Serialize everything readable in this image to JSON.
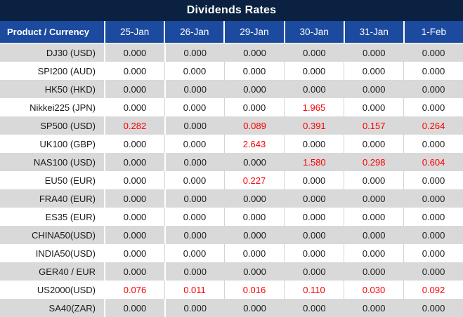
{
  "title": "Dividends Rates",
  "colors": {
    "title_bar": "#0a2142",
    "header_bar": "#1c4a9e",
    "row_gray": "#d9d9d9",
    "row_white": "#ffffff",
    "value_red": "#fe0000",
    "text_dark": "#1a1a1a"
  },
  "table": {
    "product_header": "Product / Currency",
    "date_columns": [
      "25-Jan",
      "26-Jan",
      "29-Jan",
      "30-Jan",
      "31-Jan",
      "1-Feb"
    ],
    "rows": [
      {
        "product": "DJ30 (USD)",
        "values": [
          "0.000",
          "0.000",
          "0.000",
          "0.000",
          "0.000",
          "0.000"
        ],
        "red_columns": []
      },
      {
        "product": "SPI200 (AUD)",
        "values": [
          "0.000",
          "0.000",
          "0.000",
          "0.000",
          "0.000",
          "0.000"
        ],
        "red_columns": []
      },
      {
        "product": "HK50 (HKD)",
        "values": [
          "0.000",
          "0.000",
          "0.000",
          "0.000",
          "0.000",
          "0.000"
        ],
        "red_columns": []
      },
      {
        "product": "Nikkei225 (JPN)",
        "values": [
          "0.000",
          "0.000",
          "0.000",
          "1.965",
          "0.000",
          "0.000"
        ],
        "red_columns": [
          3
        ]
      },
      {
        "product": "SP500 (USD)",
        "values": [
          "0.282",
          "0.000",
          "0.089",
          "0.391",
          "0.157",
          "0.264"
        ],
        "red_columns": [
          0,
          2,
          3,
          4,
          5
        ]
      },
      {
        "product": "UK100 (GBP)",
        "values": [
          "0.000",
          "0.000",
          "2.643",
          "0.000",
          "0.000",
          "0.000"
        ],
        "red_columns": [
          2
        ]
      },
      {
        "product": "NAS100 (USD)",
        "values": [
          "0.000",
          "0.000",
          "0.000",
          "1.580",
          "0.298",
          "0.604"
        ],
        "red_columns": [
          3,
          4,
          5
        ]
      },
      {
        "product": "EU50 (EUR)",
        "values": [
          "0.000",
          "0.000",
          "0.227",
          "0.000",
          "0.000",
          "0.000"
        ],
        "red_columns": [
          2
        ]
      },
      {
        "product": "FRA40 (EUR)",
        "values": [
          "0.000",
          "0.000",
          "0.000",
          "0.000",
          "0.000",
          "0.000"
        ],
        "red_columns": []
      },
      {
        "product": "ES35 (EUR)",
        "values": [
          "0.000",
          "0.000",
          "0.000",
          "0.000",
          "0.000",
          "0.000"
        ],
        "red_columns": []
      },
      {
        "product": "CHINA50(USD)",
        "values": [
          "0.000",
          "0.000",
          "0.000",
          "0.000",
          "0.000",
          "0.000"
        ],
        "red_columns": []
      },
      {
        "product": "INDIA50(USD)",
        "values": [
          "0.000",
          "0.000",
          "0.000",
          "0.000",
          "0.000",
          "0.000"
        ],
        "red_columns": []
      },
      {
        "product": "GER40 / EUR",
        "values": [
          "0.000",
          "0.000",
          "0.000",
          "0.000",
          "0.000",
          "0.000"
        ],
        "red_columns": []
      },
      {
        "product": "US2000(USD)",
        "values": [
          "0.076",
          "0.011",
          "0.016",
          "0.110",
          "0.030",
          "0.092"
        ],
        "red_columns": [
          0,
          1,
          2,
          3,
          4,
          5
        ]
      },
      {
        "product": "SA40(ZAR)",
        "values": [
          "0.000",
          "0.000",
          "0.000",
          "0.000",
          "0.000",
          "0.000"
        ],
        "red_columns": []
      }
    ]
  }
}
